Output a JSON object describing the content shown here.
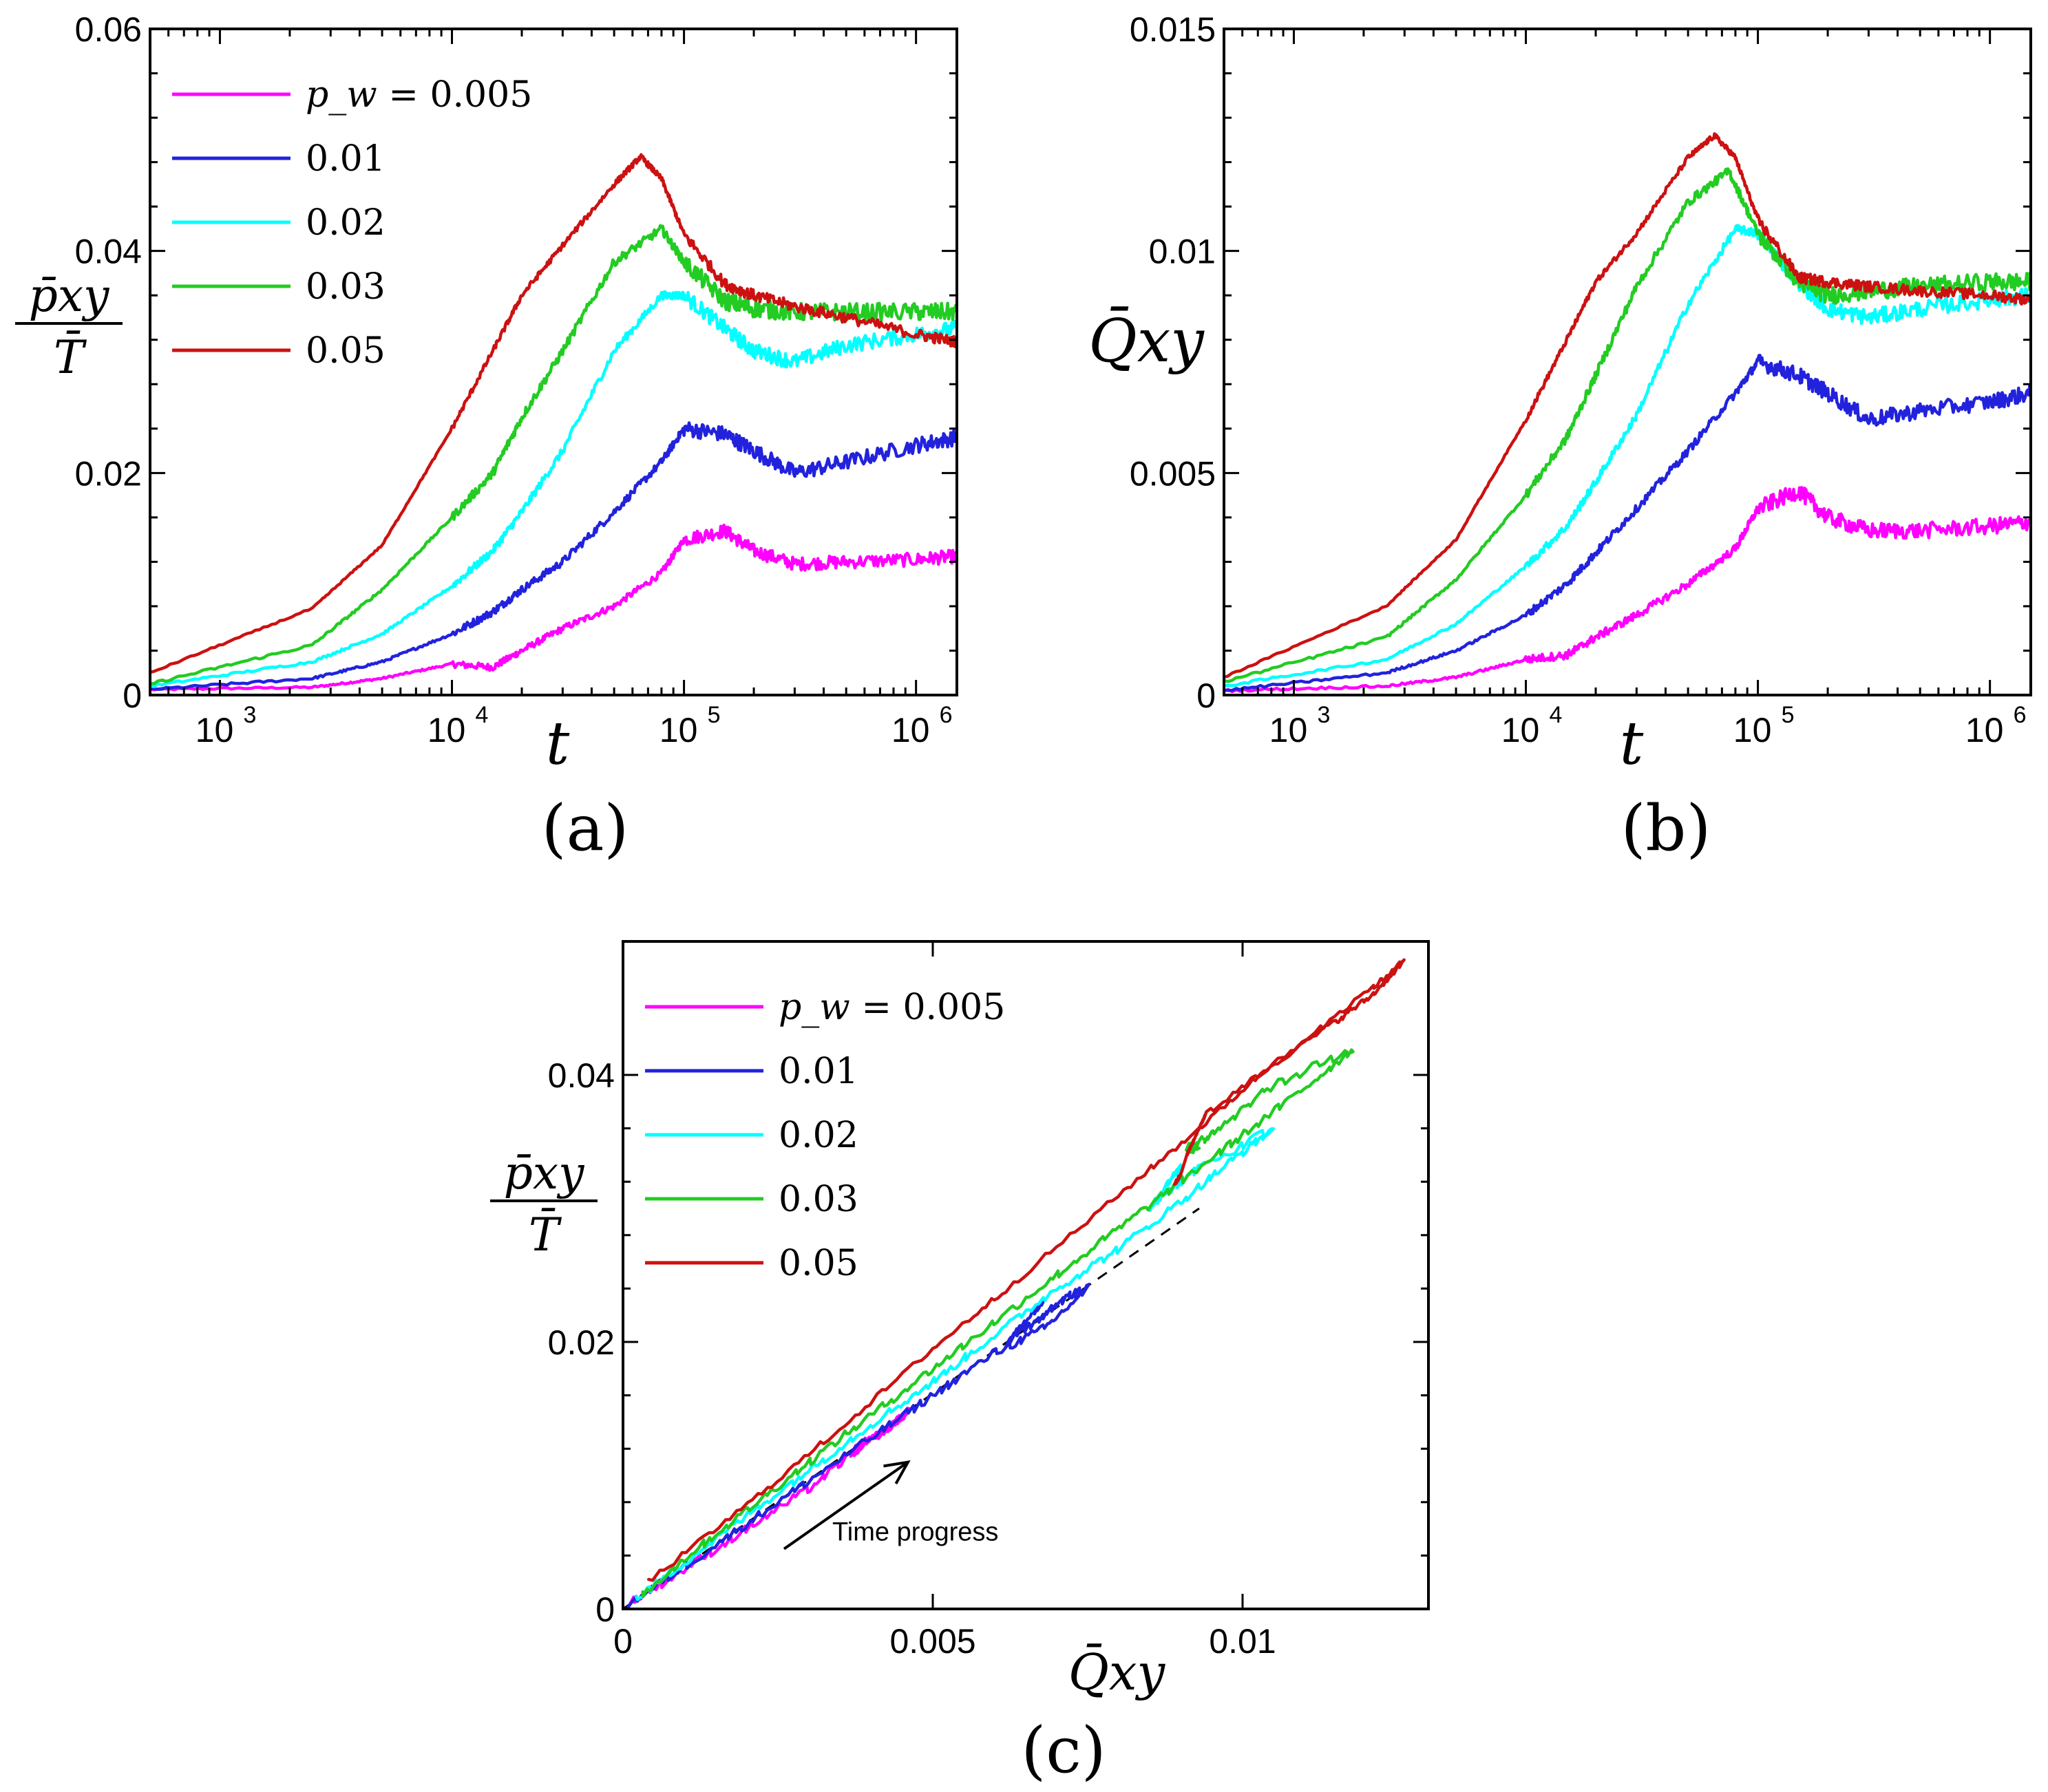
{
  "chart_data": [
    {
      "id": "a",
      "type": "line",
      "panel_label": "(a)",
      "xscale": "log",
      "xlim": [
        500,
        1500000
      ],
      "ylim": [
        0,
        0.06
      ],
      "xlabel": "t",
      "ylabel": {
        "numerator": "p̄xy",
        "denominator": "T̄"
      },
      "xticks": [
        {
          "value": 1000,
          "base": "10",
          "exp": "3"
        },
        {
          "value": 10000,
          "base": "10",
          "exp": "4"
        },
        {
          "value": 100000,
          "base": "10",
          "exp": "5"
        },
        {
          "value": 1000000,
          "base": "10",
          "exp": "6"
        }
      ],
      "yticks": [
        {
          "value": 0,
          "label": "0"
        },
        {
          "value": 0.02,
          "label": "0.02"
        },
        {
          "value": 0.04,
          "label": "0.04"
        },
        {
          "value": 0.06,
          "label": "0.06"
        }
      ],
      "legend": {
        "position": "top-left",
        "title_prefix": "p_w = ",
        "entries": [
          "0.005",
          "0.01",
          "0.02",
          "0.03",
          "0.05"
        ]
      },
      "series": [
        {
          "name": "0.005",
          "color": "#ff00ff",
          "x": [
            500,
            2500,
            5000,
            10000,
            15000,
            20000,
            30000,
            50000,
            80000,
            100000,
            150000,
            200000,
            300000,
            500000,
            1000000,
            1500000
          ],
          "y": [
            0.0005,
            0.0007,
            0.0015,
            0.0028,
            0.0025,
            0.004,
            0.006,
            0.008,
            0.011,
            0.014,
            0.0148,
            0.013,
            0.0118,
            0.012,
            0.0122,
            0.0125
          ],
          "noise": 0.0006
        },
        {
          "name": "0.01",
          "color": "#2222dd",
          "x": [
            500,
            2500,
            5000,
            10000,
            15000,
            20000,
            30000,
            50000,
            80000,
            100000,
            150000,
            200000,
            300000,
            500000,
            1000000,
            1500000
          ],
          "y": [
            0.0005,
            0.0015,
            0.003,
            0.0055,
            0.0075,
            0.0095,
            0.012,
            0.0165,
            0.021,
            0.024,
            0.0235,
            0.022,
            0.02,
            0.021,
            0.0225,
            0.0232
          ],
          "noise": 0.0007
        },
        {
          "name": "0.02",
          "color": "#00ffff",
          "x": [
            500,
            2500,
            5000,
            10000,
            15000,
            20000,
            30000,
            50000,
            80000,
            100000,
            150000,
            200000,
            300000,
            500000,
            1000000,
            1500000
          ],
          "y": [
            0.0008,
            0.003,
            0.0055,
            0.0098,
            0.013,
            0.0165,
            0.022,
            0.031,
            0.036,
            0.036,
            0.033,
            0.031,
            0.03,
            0.0315,
            0.0325,
            0.033
          ],
          "noise": 0.0007
        },
        {
          "name": "0.03",
          "color": "#22cc22",
          "x": [
            500,
            2500,
            5000,
            10000,
            15000,
            20000,
            30000,
            50000,
            80000,
            100000,
            150000,
            200000,
            300000,
            500000,
            1000000,
            1500000
          ],
          "y": [
            0.001,
            0.0045,
            0.0095,
            0.016,
            0.02,
            0.025,
            0.031,
            0.039,
            0.042,
            0.039,
            0.0355,
            0.0348,
            0.0345,
            0.0345,
            0.0345,
            0.0345
          ],
          "noise": 0.0008
        },
        {
          "name": "0.05",
          "color": "#cc1111",
          "x": [
            500,
            2500,
            5000,
            10000,
            15000,
            20000,
            30000,
            50000,
            65000,
            80000,
            100000,
            150000,
            200000,
            300000,
            500000,
            1000000,
            1500000
          ],
          "y": [
            0.002,
            0.0078,
            0.0135,
            0.024,
            0.031,
            0.036,
            0.0405,
            0.046,
            0.0485,
            0.0465,
            0.0415,
            0.037,
            0.036,
            0.035,
            0.034,
            0.0325,
            0.0318
          ],
          "noise": 0.0005
        }
      ]
    },
    {
      "id": "b",
      "type": "line",
      "panel_label": "(b)",
      "xscale": "log",
      "xlim": [
        500,
        1500000
      ],
      "ylim": [
        0,
        0.015
      ],
      "xlabel": "t",
      "ylabel": "Q̄xy",
      "xticks": [
        {
          "value": 1000,
          "base": "10",
          "exp": "3"
        },
        {
          "value": 10000,
          "base": "10",
          "exp": "4"
        },
        {
          "value": 100000,
          "base": "10",
          "exp": "5"
        },
        {
          "value": 1000000,
          "base": "10",
          "exp": "6"
        }
      ],
      "yticks": [
        {
          "value": 0,
          "label": "0"
        },
        {
          "value": 0.005,
          "label": "0.005"
        },
        {
          "value": 0.01,
          "label": "0.01"
        },
        {
          "value": 0.015,
          "label": "0.015"
        }
      ],
      "series": [
        {
          "name": "0.005",
          "color": "#ff00ff",
          "x": [
            500,
            2500,
            5000,
            10000,
            15000,
            20000,
            30000,
            50000,
            80000,
            100000,
            150000,
            200000,
            300000,
            500000,
            1000000,
            1500000
          ],
          "y": [
            0.0001,
            0.0002,
            0.0004,
            0.0008,
            0.0009,
            0.0013,
            0.0018,
            0.0025,
            0.0033,
            0.0042,
            0.0046,
            0.004,
            0.0037,
            0.0037,
            0.0038,
            0.0039
          ],
          "noise": 0.00018
        },
        {
          "name": "0.01",
          "color": "#2222dd",
          "x": [
            500,
            2500,
            5000,
            10000,
            15000,
            20000,
            30000,
            50000,
            80000,
            100000,
            150000,
            200000,
            300000,
            500000,
            1000000,
            1500000
          ],
          "y": [
            0.0001,
            0.0005,
            0.001,
            0.0018,
            0.0025,
            0.0032,
            0.0042,
            0.0055,
            0.0068,
            0.0075,
            0.0072,
            0.0068,
            0.0062,
            0.0064,
            0.0066,
            0.0068
          ],
          "noise": 0.00018
        },
        {
          "name": "0.02",
          "color": "#00ffff",
          "x": [
            500,
            2500,
            5000,
            10000,
            15000,
            20000,
            30000,
            50000,
            80000,
            100000,
            150000,
            200000,
            300000,
            500000,
            1000000,
            1500000
          ],
          "y": [
            0.0002,
            0.0008,
            0.0016,
            0.0029,
            0.0038,
            0.0048,
            0.0063,
            0.0088,
            0.0105,
            0.0104,
            0.0093,
            0.0087,
            0.0085,
            0.0087,
            0.0089,
            0.009
          ],
          "noise": 0.00018
        },
        {
          "name": "0.03",
          "color": "#22cc22",
          "x": [
            500,
            2500,
            5000,
            10000,
            15000,
            20000,
            30000,
            50000,
            75000,
            100000,
            150000,
            200000,
            300000,
            500000,
            1000000,
            1500000
          ],
          "y": [
            0.0003,
            0.0013,
            0.0026,
            0.0045,
            0.0058,
            0.0072,
            0.0092,
            0.0111,
            0.0118,
            0.0104,
            0.0093,
            0.009,
            0.0091,
            0.0092,
            0.0093,
            0.0093
          ],
          "noise": 0.0002
        },
        {
          "name": "0.05",
          "color": "#cc1111",
          "x": [
            500,
            2500,
            5000,
            10000,
            15000,
            20000,
            30000,
            50000,
            65000,
            80000,
            100000,
            150000,
            200000,
            300000,
            500000,
            1000000,
            1500000
          ],
          "y": [
            0.0004,
            0.002,
            0.0035,
            0.0062,
            0.008,
            0.0093,
            0.0104,
            0.0121,
            0.0126,
            0.0121,
            0.0107,
            0.0094,
            0.0093,
            0.0092,
            0.0091,
            0.009,
            0.0089
          ],
          "noise": 0.00012
        }
      ]
    },
    {
      "id": "c",
      "type": "line",
      "panel_label": "(c)",
      "xscale": "linear",
      "xlim": [
        0,
        0.013
      ],
      "ylim": [
        0,
        0.05
      ],
      "xlabel": "Q̄xy",
      "ylabel": {
        "numerator": "p̄xy",
        "denominator": "T̄"
      },
      "xticks": [
        {
          "value": 0,
          "label": "0"
        },
        {
          "value": 0.005,
          "label": "0.005"
        },
        {
          "value": 0.01,
          "label": "0.01"
        }
      ],
      "yticks": [
        {
          "value": 0,
          "label": "0"
        },
        {
          "value": 0.02,
          "label": "0.02"
        },
        {
          "value": 0.04,
          "label": "0.04"
        }
      ],
      "legend": {
        "position": "top-left",
        "title_prefix": "p_w = ",
        "entries": [
          "0.005",
          "0.01",
          "0.02",
          "0.03",
          "0.05"
        ]
      },
      "annotation": {
        "text": "Time progress",
        "arrow_from": [
          0.0026,
          0.0045
        ],
        "arrow_to": [
          0.0046,
          0.011
        ]
      },
      "reference_line": {
        "style": "dashed",
        "color": "#000000",
        "x": [
          0,
          0.0093
        ],
        "y": [
          0,
          0.03
        ]
      },
      "series": [
        {
          "name": "0.005",
          "color": "#ff00ff",
          "x": [
            0.0001,
            0.001,
            0.002,
            0.003,
            0.0038,
            0.0044,
            0.0046,
            0.0042,
            0.0037,
            0.0038,
            0.0039
          ],
          "y": [
            0.0004,
            0.003,
            0.006,
            0.009,
            0.012,
            0.014,
            0.0148,
            0.0132,
            0.0118,
            0.012,
            0.0125
          ],
          "noise": 0.0004
        },
        {
          "name": "0.01",
          "color": "#2222dd",
          "x": [
            0.0001,
            0.001,
            0.002,
            0.003,
            0.004,
            0.005,
            0.006,
            0.0068,
            0.0075,
            0.0072,
            0.0068,
            0.0062,
            0.0064,
            0.0068
          ],
          "y": [
            0.0004,
            0.0032,
            0.0064,
            0.0096,
            0.0128,
            0.016,
            0.0192,
            0.021,
            0.024,
            0.0235,
            0.022,
            0.02,
            0.021,
            0.0232
          ],
          "noise": 0.0004
        },
        {
          "name": "0.02",
          "color": "#00ffff",
          "x": [
            0.0002,
            0.001,
            0.002,
            0.003,
            0.004,
            0.005,
            0.006,
            0.007,
            0.008,
            0.009,
            0.0098,
            0.0105,
            0.0093,
            0.0087,
            0.0085,
            0.0088,
            0.009
          ],
          "y": [
            0.0007,
            0.0035,
            0.007,
            0.0104,
            0.0138,
            0.017,
            0.0205,
            0.024,
            0.027,
            0.0305,
            0.0335,
            0.036,
            0.033,
            0.031,
            0.03,
            0.032,
            0.033
          ],
          "noise": 0.0004
        },
        {
          "name": "0.03",
          "color": "#22cc22",
          "x": [
            0.0003,
            0.001,
            0.002,
            0.003,
            0.004,
            0.005,
            0.006,
            0.007,
            0.008,
            0.009,
            0.01,
            0.011,
            0.0118,
            0.0104,
            0.0095,
            0.0091,
            0.0093
          ],
          "y": [
            0.001,
            0.0038,
            0.0074,
            0.011,
            0.0145,
            0.018,
            0.0215,
            0.025,
            0.0285,
            0.032,
            0.0355,
            0.039,
            0.042,
            0.039,
            0.0355,
            0.0345,
            0.0345
          ],
          "noise": 0.0004
        },
        {
          "name": "0.05",
          "color": "#cc1111",
          "x": [
            0.0004,
            0.002,
            0.0035,
            0.005,
            0.0062,
            0.008,
            0.0093,
            0.0104,
            0.0115,
            0.0121,
            0.0126,
            0.0121,
            0.0107,
            0.0094,
            0.0092,
            0.0091,
            0.009,
            0.0089
          ],
          "y": [
            0.002,
            0.0078,
            0.0135,
            0.0195,
            0.024,
            0.031,
            0.036,
            0.0405,
            0.044,
            0.046,
            0.0485,
            0.0465,
            0.0415,
            0.037,
            0.035,
            0.034,
            0.0325,
            0.0318
          ],
          "noise": 0.0003
        }
      ]
    }
  ]
}
